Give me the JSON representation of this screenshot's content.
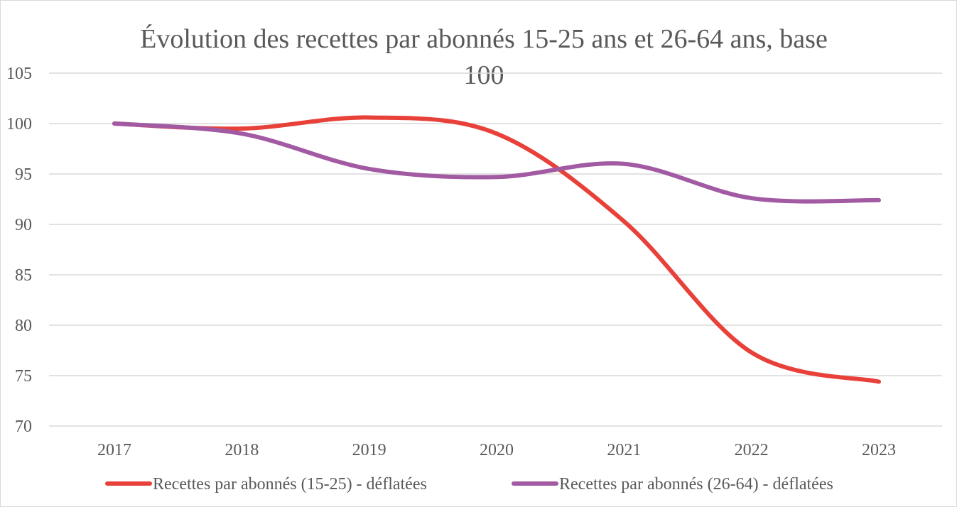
{
  "chart_data": {
    "type": "line",
    "title": "Évolution des recettes par abonnés 15-25 ans et 26-64 ans, base 100",
    "title_lines": [
      "Évolution des recettes par abonnés 15-25 ans et 26-64 ans, base",
      "100"
    ],
    "xlabel": "",
    "ylabel": "",
    "categories": [
      "2017",
      "2018",
      "2019",
      "2020",
      "2021",
      "2022",
      "2023"
    ],
    "ylim": [
      70,
      105
    ],
    "yticks": [
      70,
      75,
      80,
      85,
      90,
      95,
      100,
      105
    ],
    "grid": true,
    "smooth": true,
    "legend_position": "bottom",
    "series": [
      {
        "name": "Recettes par abonnés (15-25) - déflatées",
        "color": "#e8413a",
        "values": [
          100,
          99.5,
          100.6,
          99.0,
          90.3,
          77.3,
          74.4
        ]
      },
      {
        "name": "Recettes par abonnés (26-64) - déflatées",
        "color": "#a25aa3",
        "values": [
          100,
          99.0,
          95.5,
          94.7,
          96.0,
          92.6,
          92.4
        ]
      }
    ]
  }
}
